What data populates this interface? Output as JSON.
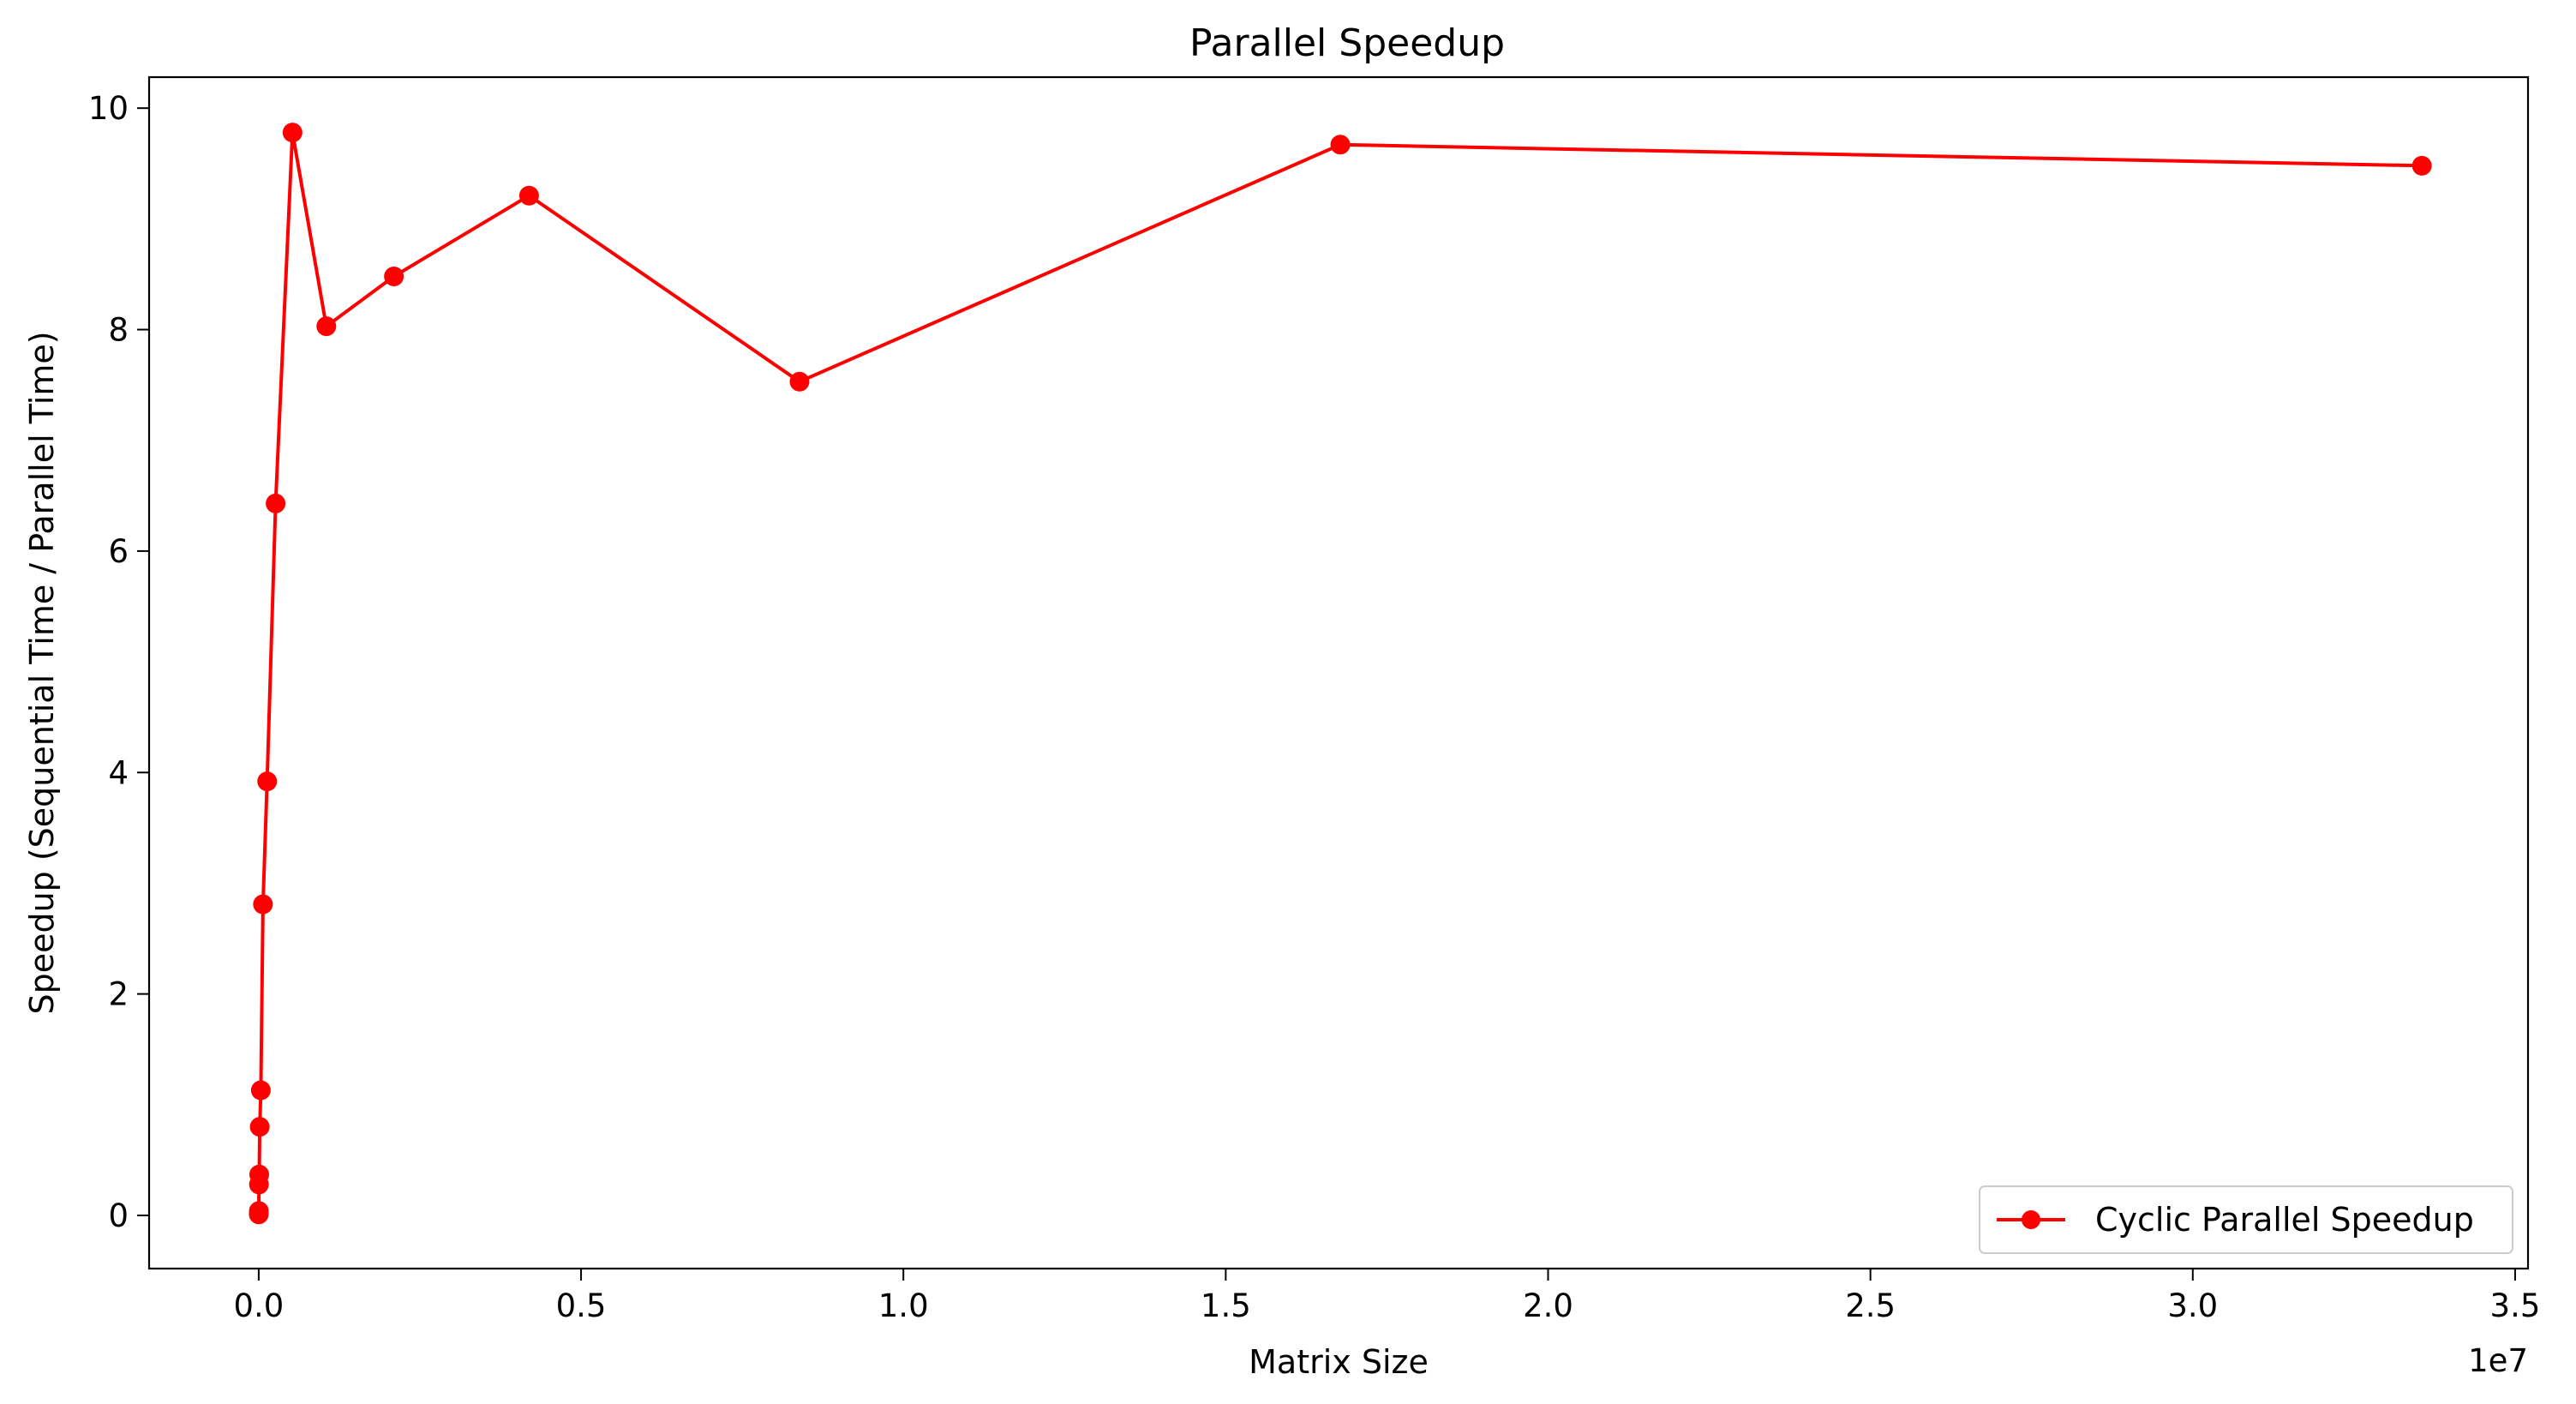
{
  "chart_data": {
    "type": "line",
    "title": "Parallel Speedup",
    "xlabel": "Matrix Size",
    "ylabel": "Speedup (Sequential Time / Parallel Time)",
    "x_offset_label": "1e7",
    "xlim": [
      -0.17,
      3.52
    ],
    "ylim": [
      -0.48,
      10.28
    ],
    "x_ticks": [
      0.0,
      0.5,
      1.0,
      1.5,
      2.0,
      2.5,
      3.0,
      3.5
    ],
    "x_tick_labels": [
      "0.0",
      "0.5",
      "1.0",
      "1.5",
      "2.0",
      "2.5",
      "3.0",
      "3.5"
    ],
    "y_ticks": [
      0,
      2,
      4,
      6,
      8,
      10
    ],
    "y_tick_labels": [
      "0",
      "2",
      "4",
      "6",
      "8",
      "10"
    ],
    "grid": false,
    "legend_position": "bottom-right",
    "series": [
      {
        "name": "Cyclic Parallel Speedup",
        "color": "#ff0000",
        "marker": "circle",
        "x": [
          0.0001,
          0.0002,
          0.0004,
          0.0008,
          0.0016,
          0.0033,
          0.0066,
          0.0131,
          0.0262,
          0.0524,
          0.1049,
          0.2097,
          0.4194,
          0.8389,
          1.6777,
          3.3554
        ],
        "y": [
          0.01,
          0.04,
          0.28,
          0.37,
          0.8,
          1.13,
          2.81,
          3.92,
          6.43,
          9.78,
          8.03,
          8.48,
          9.21,
          7.53,
          9.67,
          9.48
        ]
      }
    ]
  }
}
